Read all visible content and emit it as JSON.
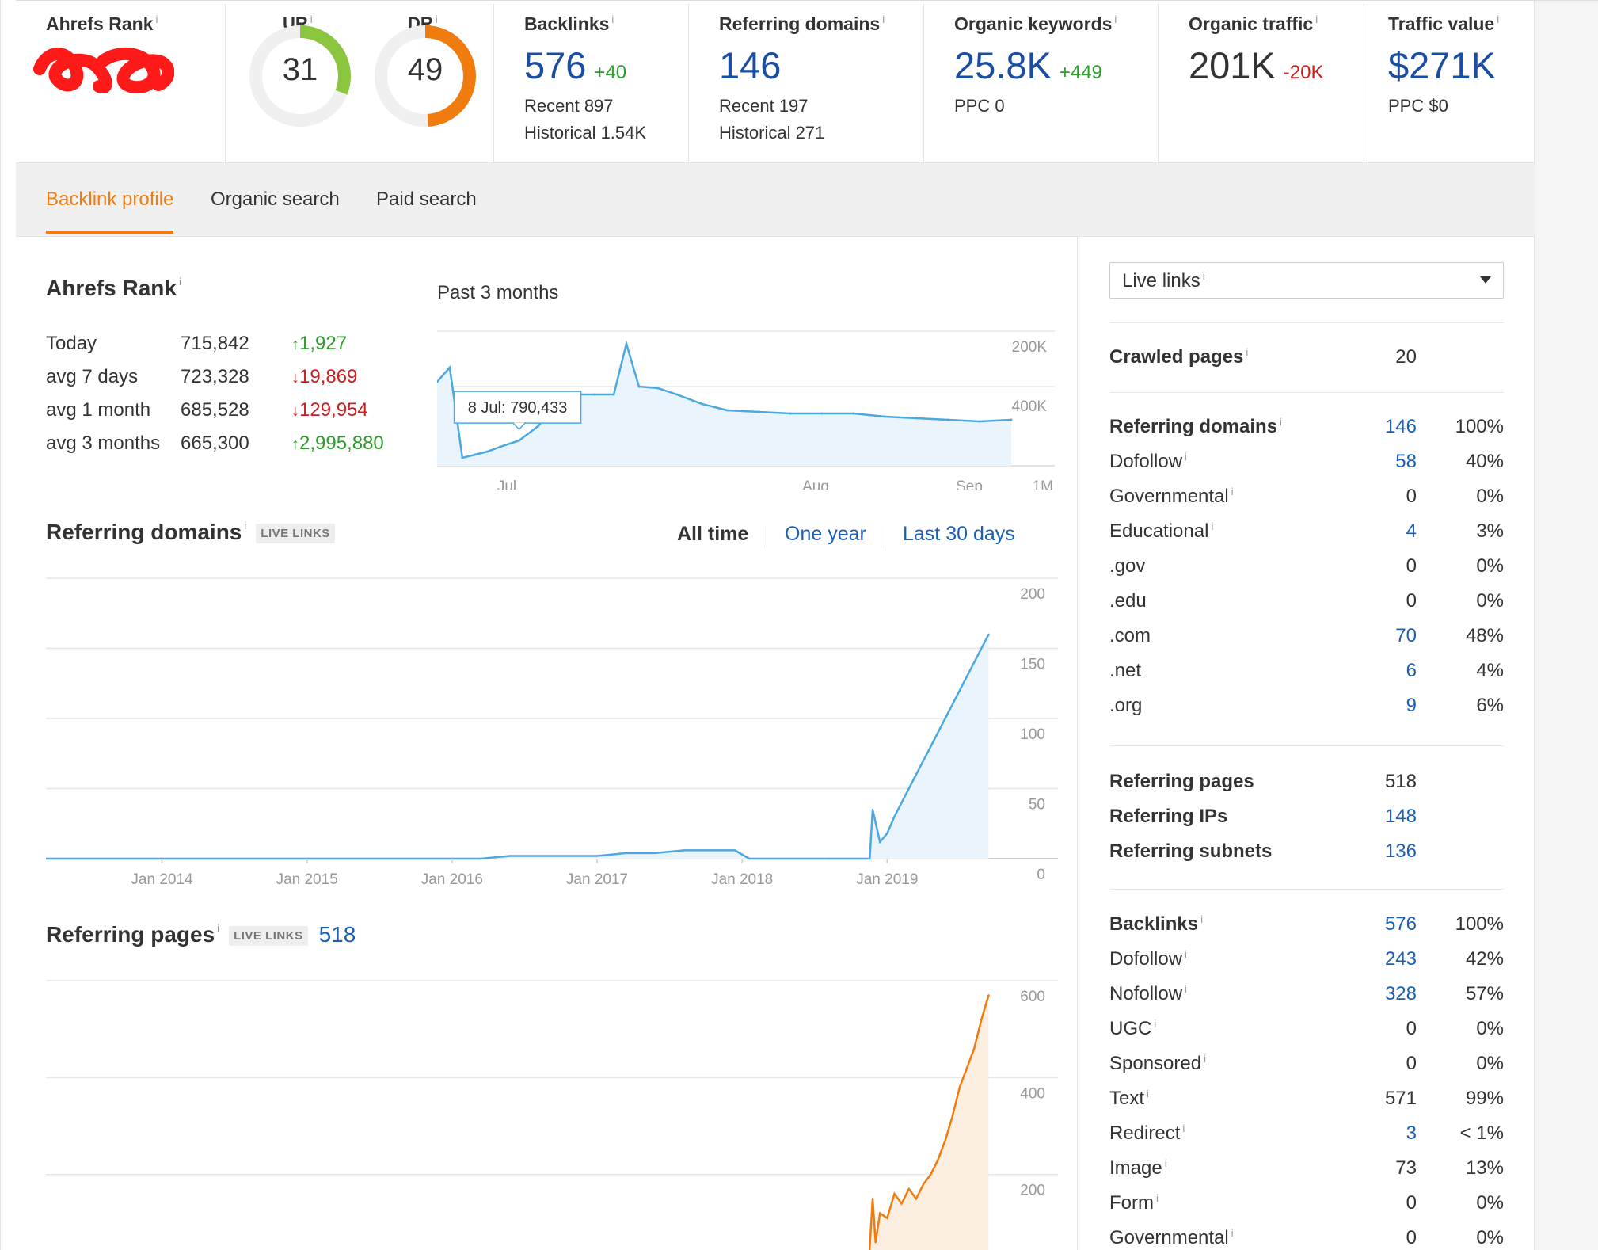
{
  "metrics": {
    "ahrefs_rank": {
      "title": "Ahrefs Rank",
      "value_visible": "7"
    },
    "ur": {
      "label": "UR",
      "value": "31",
      "fraction": 0.31,
      "color": "#8cc63f"
    },
    "dr": {
      "label": "DR",
      "value": "49",
      "fraction": 0.49,
      "color": "#f07c10"
    },
    "backlinks": {
      "title": "Backlinks",
      "value": "576",
      "delta": "+40",
      "recent": "Recent 897",
      "historical": "Historical 1.54K"
    },
    "referring_domains": {
      "title": "Referring domains",
      "value": "146",
      "recent": "Recent 197",
      "historical": "Historical 271"
    },
    "organic_keywords": {
      "title": "Organic keywords",
      "value": "25.8K",
      "delta": "+449",
      "ppc": "PPC 0"
    },
    "organic_traffic": {
      "title": "Organic traffic",
      "value": "201K",
      "delta": "-20K"
    },
    "traffic_value": {
      "title": "Traffic value",
      "value": "$271K",
      "ppc": "PPC $0"
    }
  },
  "info_mark": "i",
  "tabs": [
    {
      "label": "Backlink profile",
      "active": true
    },
    {
      "label": "Organic search",
      "active": false
    },
    {
      "label": "Paid search",
      "active": false
    }
  ],
  "rank_section": {
    "title": "Ahrefs Rank",
    "period_label": "Past 3 months",
    "rows": [
      {
        "label": "Today",
        "value": "715,842",
        "change": "1,927",
        "direction": "up"
      },
      {
        "label": "avg 7 days",
        "value": "723,328",
        "change": "19,869",
        "direction": "down"
      },
      {
        "label": "avg 1 month",
        "value": "685,528",
        "change": "129,954",
        "direction": "down"
      },
      {
        "label": "avg 3 months",
        "value": "665,300",
        "change": "2,995,880",
        "direction": "up"
      }
    ],
    "tooltip": "8 Jul: 790,433"
  },
  "referring_domains_section": {
    "title": "Referring domains",
    "badge": "LIVE LINKS",
    "ranges": [
      {
        "label": "All time",
        "active": true
      },
      {
        "label": "One year",
        "active": false
      },
      {
        "label": "Last 30 days",
        "active": false
      }
    ]
  },
  "referring_pages_section": {
    "title": "Referring pages",
    "badge": "LIVE LINKS",
    "count": "518"
  },
  "right_panel": {
    "select_value": "Live links",
    "crawled_pages": {
      "label": "Crawled pages",
      "value": "20"
    },
    "ref_domains_group": [
      {
        "label": "Referring domains",
        "value": "146",
        "pct": "100%",
        "bold": true,
        "info": true,
        "link": true
      },
      {
        "label": "Dofollow",
        "value": "58",
        "pct": "40%",
        "info": true,
        "link": true
      },
      {
        "label": "Governmental",
        "value": "0",
        "pct": "0%",
        "info": true,
        "link": false
      },
      {
        "label": "Educational",
        "value": "4",
        "pct": "3%",
        "info": true,
        "link": true
      },
      {
        "label": ".gov",
        "value": "0",
        "pct": "0%",
        "info": false,
        "link": false
      },
      {
        "label": ".edu",
        "value": "0",
        "pct": "0%",
        "info": false,
        "link": false
      },
      {
        "label": ".com",
        "value": "70",
        "pct": "48%",
        "info": false,
        "link": true
      },
      {
        "label": ".net",
        "value": "6",
        "pct": "4%",
        "info": false,
        "link": true
      },
      {
        "label": ".org",
        "value": "9",
        "pct": "6%",
        "info": false,
        "link": true
      }
    ],
    "ref_misc_group": [
      {
        "label": "Referring pages",
        "value": "518",
        "link": false
      },
      {
        "label": "Referring IPs",
        "value": "148",
        "link": true
      },
      {
        "label": "Referring subnets",
        "value": "136",
        "link": true
      }
    ],
    "backlinks_group": [
      {
        "label": "Backlinks",
        "value": "576",
        "pct": "100%",
        "bold": true,
        "info": true,
        "link": true
      },
      {
        "label": "Dofollow",
        "value": "243",
        "pct": "42%",
        "info": true,
        "link": true
      },
      {
        "label": "Nofollow",
        "value": "328",
        "pct": "57%",
        "info": true,
        "link": true
      },
      {
        "label": "UGC",
        "value": "0",
        "pct": "0%",
        "info": true,
        "link": false
      },
      {
        "label": "Sponsored",
        "value": "0",
        "pct": "0%",
        "info": true,
        "link": false
      },
      {
        "label": "Text",
        "value": "571",
        "pct": "99%",
        "info": true,
        "link": false
      },
      {
        "label": "Redirect",
        "value": "3",
        "pct": "< 1%",
        "info": true,
        "link": true
      },
      {
        "label": "Image",
        "value": "73",
        "pct": "13%",
        "info": true,
        "link": false
      },
      {
        "label": "Form",
        "value": "0",
        "pct": "0%",
        "info": true,
        "link": false
      },
      {
        "label": "Governmental",
        "value": "0",
        "pct": "0%",
        "info": true,
        "link": false
      }
    ]
  },
  "chart_data": [
    {
      "type": "line",
      "title": "Ahrefs Rank",
      "subtitle": "Past 3 months",
      "y_axis_inverted": true,
      "y_tick_labels": [
        "200K",
        "400K",
        "1M"
      ],
      "x_tick_labels": [
        "Jul",
        "Aug",
        "Sep"
      ],
      "x": [
        "2019-06-25",
        "2019-06-27",
        "2019-06-29",
        "2019-07-01",
        "2019-07-03",
        "2019-07-05",
        "2019-07-08",
        "2019-07-11",
        "2019-07-14",
        "2019-07-17",
        "2019-07-20",
        "2019-07-23",
        "2019-07-25",
        "2019-07-27",
        "2019-07-30",
        "2019-08-02",
        "2019-08-06",
        "2019-08-10",
        "2019-08-15",
        "2019-08-20",
        "2019-08-25",
        "2019-08-30",
        "2019-09-04",
        "2019-09-09",
        "2019-09-14",
        "2019-09-19",
        "2019-09-24"
      ],
      "values": [
        420000,
        330000,
        900000,
        880000,
        860000,
        830000,
        790433,
        700000,
        560000,
        500000,
        500000,
        500000,
        180000,
        450000,
        460000,
        500000,
        560000,
        600000,
        610000,
        620000,
        620000,
        620000,
        640000,
        650000,
        660000,
        670000,
        660000
      ],
      "color": "#4ca8e0"
    },
    {
      "type": "area",
      "title": "Referring domains",
      "x_tick_labels": [
        "Jan 2014",
        "Jan 2015",
        "Jan 2016",
        "Jan 2017",
        "Jan 2018",
        "Jan 2019"
      ],
      "y_tick_labels": [
        "0",
        "50",
        "100",
        "150",
        "200"
      ],
      "ylim": [
        0,
        200
      ],
      "x": [
        2013.0,
        2016.2,
        2016.4,
        2017.0,
        2017.2,
        2017.4,
        2017.6,
        2017.8,
        2017.95,
        2018.05,
        2018.6,
        2018.88,
        2018.9,
        2018.95,
        2019.0,
        2019.05,
        2019.1,
        2019.2,
        2019.3,
        2019.4,
        2019.5,
        2019.6,
        2019.7
      ],
      "values": [
        0,
        0,
        2,
        2,
        4,
        4,
        6,
        6,
        6,
        0,
        0,
        0,
        35,
        12,
        18,
        30,
        40,
        60,
        80,
        100,
        120,
        140,
        160
      ],
      "color": "#4ca8e0"
    },
    {
      "type": "area",
      "title": "Referring pages",
      "y_tick_labels": [
        "200",
        "400",
        "600"
      ],
      "ylim": [
        0,
        600
      ],
      "x": [
        2018.87,
        2018.9,
        2018.92,
        2018.95,
        2019.0,
        2019.05,
        2019.1,
        2019.15,
        2019.2,
        2019.25,
        2019.3,
        2019.35,
        2019.4,
        2019.45,
        2019.5,
        2019.55,
        2019.6,
        2019.65,
        2019.7
      ],
      "values": [
        0,
        150,
        60,
        120,
        110,
        160,
        140,
        170,
        150,
        180,
        200,
        230,
        270,
        320,
        380,
        420,
        460,
        520,
        570
      ],
      "color": "#f07c10"
    }
  ]
}
